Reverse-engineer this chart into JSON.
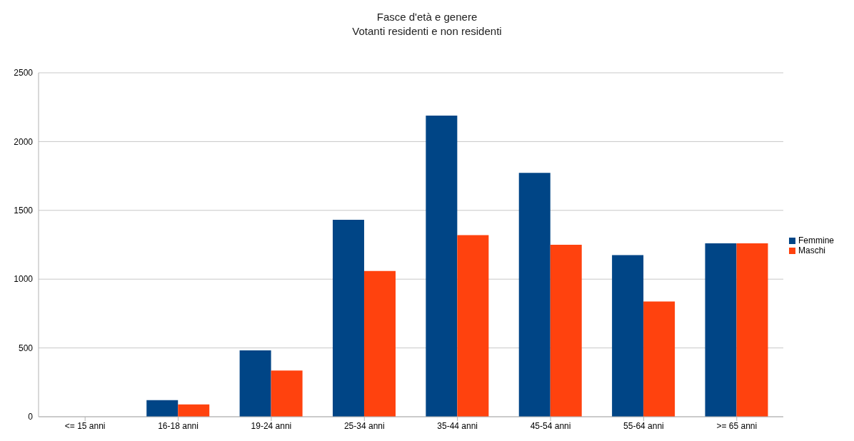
{
  "chart_data": {
    "type": "bar",
    "title": "Fasce d'età e genere\nVotanti residenti e non residenti",
    "categories": [
      "<= 15 anni",
      "16-18 anni",
      "19-24 anni",
      "25-34 anni",
      "35-44 anni",
      "45-54 anni",
      "55-64 anni",
      ">= 65 anni"
    ],
    "series": [
      {
        "name": "Femmine",
        "color": "#004586",
        "values": [
          0,
          120,
          482,
          1431,
          2189,
          1772,
          1175,
          1260
        ]
      },
      {
        "name": "Maschi",
        "color": "#ff420e",
        "values": [
          0,
          90,
          336,
          1059,
          1320,
          1250,
          838,
          1260
        ]
      }
    ],
    "ylim": [
      0,
      2500
    ],
    "yticks": [
      0,
      500,
      1000,
      1500,
      2000,
      2500
    ],
    "grid": "y",
    "legend": "right"
  }
}
